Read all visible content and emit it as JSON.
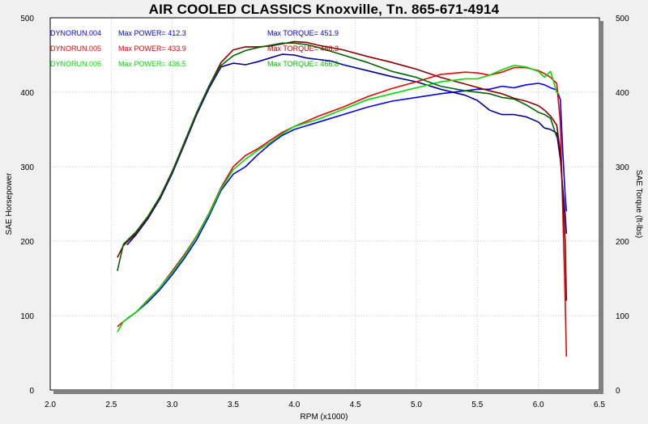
{
  "chart_data": {
    "type": "line",
    "title": "AIR COOLED CLASSICS  Knoxville, Tn. 865-671-4914",
    "xlabel": "RPM (x1000)",
    "ylabel": "SAE Horsepower",
    "y2label": "SAE Torque (ft-lbs)",
    "xlim": [
      2.0,
      6.5
    ],
    "ylim": [
      0,
      500
    ],
    "y2lim": [
      0,
      500
    ],
    "xticks": [
      "2.0",
      "2.5",
      "3.0",
      "3.5",
      "4.0",
      "4.5",
      "5.0",
      "5.5",
      "6.0",
      "6.5"
    ],
    "yticks": [
      "0",
      "100",
      "200",
      "300",
      "400",
      "500"
    ],
    "grid": true,
    "runs": [
      {
        "label": "DYNORUN.004",
        "power_label": "Max POWER= 412.3",
        "torque_label": "Max TORQUE= 451.9",
        "power_color": "#0000ee",
        "torque_color": "#000099",
        "power": [
          [
            2.63,
            96
          ],
          [
            2.7,
            104
          ],
          [
            2.8,
            118
          ],
          [
            2.9,
            135
          ],
          [
            3.0,
            155
          ],
          [
            3.1,
            177
          ],
          [
            3.2,
            202
          ],
          [
            3.3,
            233
          ],
          [
            3.4,
            268
          ],
          [
            3.5,
            290
          ],
          [
            3.6,
            300
          ],
          [
            3.7,
            316
          ],
          [
            3.8,
            330
          ],
          [
            3.9,
            342
          ],
          [
            4.0,
            350
          ],
          [
            4.2,
            360
          ],
          [
            4.4,
            370
          ],
          [
            4.6,
            380
          ],
          [
            4.8,
            388
          ],
          [
            5.0,
            393
          ],
          [
            5.2,
            398
          ],
          [
            5.4,
            402
          ],
          [
            5.5,
            404
          ],
          [
            5.6,
            404
          ],
          [
            5.7,
            408
          ],
          [
            5.8,
            406
          ],
          [
            5.9,
            410
          ],
          [
            6.0,
            412
          ],
          [
            6.05,
            410
          ],
          [
            6.1,
            406
          ],
          [
            6.15,
            403
          ],
          [
            6.18,
            390
          ],
          [
            6.2,
            320
          ],
          [
            6.22,
            260
          ],
          [
            6.23,
            240
          ]
        ],
        "torque": [
          [
            2.63,
            195
          ],
          [
            2.7,
            208
          ],
          [
            2.8,
            230
          ],
          [
            2.9,
            257
          ],
          [
            3.0,
            291
          ],
          [
            3.1,
            330
          ],
          [
            3.2,
            370
          ],
          [
            3.3,
            405
          ],
          [
            3.4,
            434
          ],
          [
            3.5,
            439
          ],
          [
            3.6,
            437
          ],
          [
            3.7,
            441
          ],
          [
            3.8,
            446
          ],
          [
            3.9,
            451
          ],
          [
            4.0,
            450
          ],
          [
            4.1,
            446
          ],
          [
            4.2,
            444
          ],
          [
            4.3,
            442
          ],
          [
            4.4,
            437
          ],
          [
            4.6,
            429
          ],
          [
            4.8,
            421
          ],
          [
            5.0,
            414
          ],
          [
            5.2,
            404
          ],
          [
            5.4,
            396
          ],
          [
            5.5,
            389
          ],
          [
            5.6,
            376
          ],
          [
            5.7,
            370
          ],
          [
            5.8,
            370
          ],
          [
            5.9,
            367
          ],
          [
            6.0,
            360
          ],
          [
            6.05,
            352
          ],
          [
            6.1,
            350
          ],
          [
            6.15,
            345
          ],
          [
            6.18,
            310
          ],
          [
            6.2,
            270
          ],
          [
            6.22,
            235
          ],
          [
            6.23,
            210
          ]
        ]
      },
      {
        "label": "DYNORUN.005",
        "power_label": "Max POWER= 433.9",
        "torque_label": "Max TORQUE= 468.3",
        "power_color": "#ee0000",
        "torque_color": "#880000",
        "power": [
          [
            2.55,
            85
          ],
          [
            2.6,
            92
          ],
          [
            2.7,
            104
          ],
          [
            2.8,
            121
          ],
          [
            2.9,
            138
          ],
          [
            3.0,
            160
          ],
          [
            3.1,
            182
          ],
          [
            3.2,
            207
          ],
          [
            3.3,
            237
          ],
          [
            3.4,
            272
          ],
          [
            3.5,
            300
          ],
          [
            3.6,
            315
          ],
          [
            3.7,
            324
          ],
          [
            3.8,
            335
          ],
          [
            3.9,
            346
          ],
          [
            4.0,
            354
          ],
          [
            4.2,
            368
          ],
          [
            4.4,
            380
          ],
          [
            4.6,
            394
          ],
          [
            4.8,
            405
          ],
          [
            5.0,
            414
          ],
          [
            5.2,
            424
          ],
          [
            5.4,
            427
          ],
          [
            5.5,
            426
          ],
          [
            5.6,
            423
          ],
          [
            5.7,
            427
          ],
          [
            5.8,
            433
          ],
          [
            5.9,
            433
          ],
          [
            6.0,
            429
          ],
          [
            6.05,
            425
          ],
          [
            6.1,
            420
          ],
          [
            6.15,
            412
          ],
          [
            6.18,
            360
          ],
          [
            6.2,
            240
          ],
          [
            6.22,
            120
          ],
          [
            6.23,
            45
          ]
        ],
        "torque": [
          [
            2.55,
            178
          ],
          [
            2.6,
            194
          ],
          [
            2.7,
            210
          ],
          [
            2.8,
            232
          ],
          [
            2.9,
            259
          ],
          [
            3.0,
            293
          ],
          [
            3.1,
            332
          ],
          [
            3.2,
            372
          ],
          [
            3.3,
            408
          ],
          [
            3.4,
            440
          ],
          [
            3.5,
            457
          ],
          [
            3.6,
            461
          ],
          [
            3.7,
            461
          ],
          [
            3.8,
            462
          ],
          [
            3.9,
            465
          ],
          [
            4.0,
            468
          ],
          [
            4.1,
            467
          ],
          [
            4.2,
            463
          ],
          [
            4.4,
            457
          ],
          [
            4.6,
            448
          ],
          [
            4.8,
            440
          ],
          [
            5.0,
            431
          ],
          [
            5.2,
            420
          ],
          [
            5.4,
            411
          ],
          [
            5.6,
            402
          ],
          [
            5.7,
            398
          ],
          [
            5.8,
            392
          ],
          [
            5.9,
            388
          ],
          [
            6.0,
            382
          ],
          [
            6.05,
            376
          ],
          [
            6.1,
            368
          ],
          [
            6.15,
            356
          ],
          [
            6.18,
            320
          ],
          [
            6.2,
            260
          ],
          [
            6.22,
            200
          ],
          [
            6.23,
            120
          ]
        ]
      },
      {
        "label": "DYNORUN.006",
        "power_label": "Max POWER= 436.5",
        "torque_label": "Max TORQUE= 466.8",
        "power_color": "#00dd00",
        "torque_color": "#006600",
        "power": [
          [
            2.55,
            78
          ],
          [
            2.6,
            92
          ],
          [
            2.7,
            104
          ],
          [
            2.8,
            120
          ],
          [
            2.9,
            138
          ],
          [
            3.0,
            158
          ],
          [
            3.1,
            180
          ],
          [
            3.2,
            206
          ],
          [
            3.3,
            236
          ],
          [
            3.4,
            270
          ],
          [
            3.5,
            296
          ],
          [
            3.6,
            310
          ],
          [
            3.7,
            322
          ],
          [
            3.8,
            332
          ],
          [
            3.9,
            344
          ],
          [
            4.0,
            354
          ],
          [
            4.2,
            364
          ],
          [
            4.4,
            377
          ],
          [
            4.6,
            390
          ],
          [
            4.8,
            398
          ],
          [
            5.0,
            406
          ],
          [
            5.2,
            414
          ],
          [
            5.4,
            418
          ],
          [
            5.5,
            418
          ],
          [
            5.6,
            423
          ],
          [
            5.7,
            430
          ],
          [
            5.8,
            436
          ],
          [
            5.9,
            434
          ],
          [
            6.0,
            428
          ],
          [
            6.05,
            420
          ],
          [
            6.1,
            428
          ],
          [
            6.15,
            400
          ],
          [
            6.17,
            398
          ]
        ],
        "torque": [
          [
            2.55,
            160
          ],
          [
            2.6,
            196
          ],
          [
            2.7,
            212
          ],
          [
            2.8,
            233
          ],
          [
            2.9,
            260
          ],
          [
            3.0,
            294
          ],
          [
            3.1,
            333
          ],
          [
            3.2,
            373
          ],
          [
            3.3,
            408
          ],
          [
            3.4,
            436
          ],
          [
            3.5,
            449
          ],
          [
            3.6,
            456
          ],
          [
            3.7,
            460
          ],
          [
            3.8,
            463
          ],
          [
            3.9,
            466
          ],
          [
            4.0,
            466
          ],
          [
            4.1,
            464
          ],
          [
            4.2,
            460
          ],
          [
            4.4,
            450
          ],
          [
            4.6,
            440
          ],
          [
            4.8,
            428
          ],
          [
            5.0,
            420
          ],
          [
            5.2,
            408
          ],
          [
            5.4,
            402
          ],
          [
            5.6,
            398
          ],
          [
            5.7,
            393
          ],
          [
            5.8,
            391
          ],
          [
            5.9,
            383
          ],
          [
            6.0,
            373
          ],
          [
            6.05,
            370
          ],
          [
            6.1,
            365
          ],
          [
            6.15,
            340
          ]
        ]
      }
    ]
  }
}
